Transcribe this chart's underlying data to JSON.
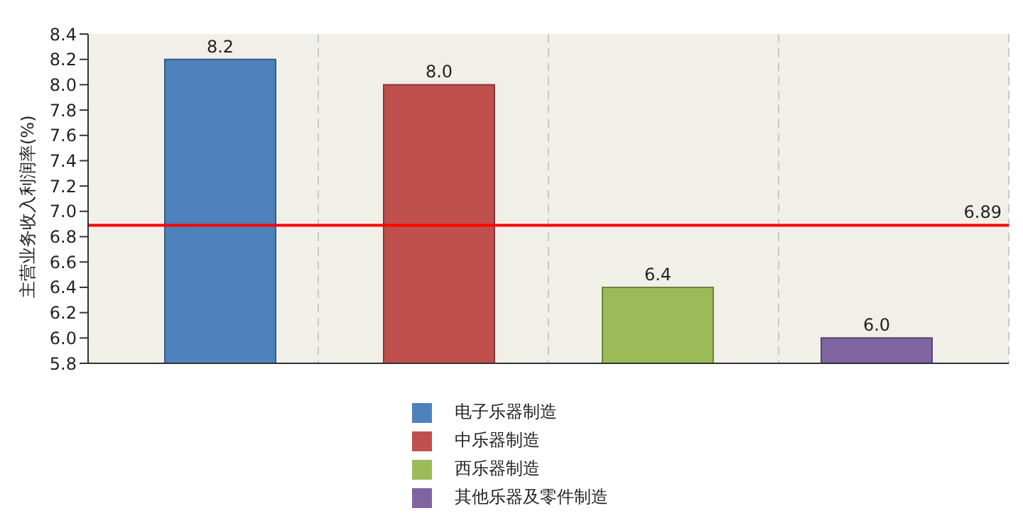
{
  "chart_data": {
    "type": "bar",
    "ylabel": "主营业务收入利润率(%)",
    "categories": [
      null
    ],
    "series": [
      {
        "name": "电子乐器制造",
        "color": "#4f81bd",
        "values": [
          8.2
        ],
        "value_labels": [
          "8.2"
        ]
      },
      {
        "name": "中乐器制造",
        "color": "#c0504d",
        "values": [
          8.0
        ],
        "value_labels": [
          "8.0"
        ]
      },
      {
        "name": "西乐器制造",
        "color": "#9bbb59",
        "values": [
          6.4
        ],
        "value_labels": [
          "6.4"
        ]
      },
      {
        "name": "其他乐器及零件制造",
        "color": "#8064a2",
        "values": [
          6.0
        ],
        "value_labels": [
          "6.0"
        ]
      }
    ],
    "ylim": [
      5.8,
      8.4
    ],
    "yticks": [
      5.8,
      {
        "value": 6,
        "label": "6.0"
      },
      6.2,
      6.4,
      6.6,
      6.8,
      {
        "value": 7,
        "label": "7.0"
      },
      7.2,
      7.4,
      7.6,
      7.8,
      {
        "value": 8,
        "label": "8.0"
      },
      8.2,
      8.4
    ],
    "ref_lines": [
      {
        "axis": "y",
        "value": 6.89,
        "label": "6.89",
        "color": "#ff0000"
      }
    ],
    "grid": "x",
    "legend": "bottom",
    "tick_labels": "y"
  }
}
